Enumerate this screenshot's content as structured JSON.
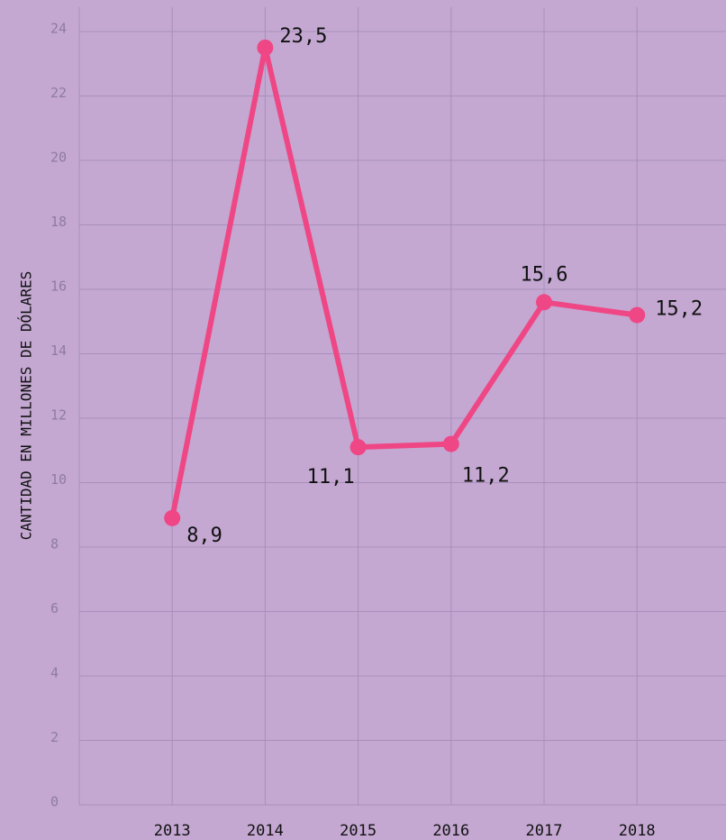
{
  "chart_data": {
    "type": "line",
    "y_label": "CANTIDAD EN MILLONES DE DÓLARES",
    "categories": [
      "2013",
      "2014",
      "2015",
      "2016",
      "2017",
      "2018"
    ],
    "series": [
      {
        "name": "Cantidad",
        "color": "#ef4785",
        "values": [
          8.9,
          23.5,
          11.1,
          11.2,
          15.6,
          15.2
        ],
        "value_labels": [
          "8,9",
          "23,5",
          "11,1",
          "11,2",
          "15,6",
          "15,2"
        ]
      }
    ],
    "ylim": [
      0,
      24
    ],
    "yticks": [
      0,
      2,
      4,
      6,
      8,
      10,
      12,
      14,
      16,
      18,
      20,
      22,
      24
    ],
    "grid": true
  }
}
